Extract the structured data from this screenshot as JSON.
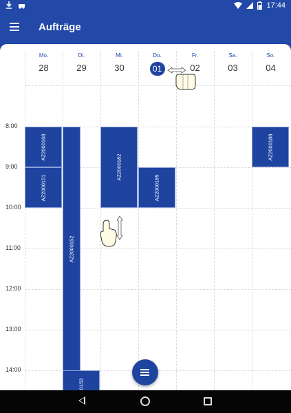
{
  "status": {
    "time": "17:44"
  },
  "appbar": {
    "title": "Aufträge"
  },
  "week": [
    {
      "name": "Mo.",
      "date": "28"
    },
    {
      "name": "Di.",
      "date": "29"
    },
    {
      "name": "Mi.",
      "date": "30"
    },
    {
      "name": "Do.",
      "date": "01"
    },
    {
      "name": "Fr.",
      "date": "02"
    },
    {
      "name": "Sa.",
      "date": "03"
    },
    {
      "name": "So.",
      "date": "04"
    }
  ],
  "times": [
    "8:00",
    "9:00",
    "10:00",
    "11:00",
    "12:00",
    "13:00",
    "14:00"
  ],
  "events": [
    {
      "label": "AZ2000168"
    },
    {
      "label": "AZ2000151"
    },
    {
      "label": "AZ2000152"
    },
    {
      "label": "AZ2000182"
    },
    {
      "label": "AZ2000185"
    },
    {
      "label": "AZ2000188"
    },
    {
      "label": "0153"
    }
  ],
  "colors": {
    "primary": "#2249a8",
    "event": "#1f44a0"
  },
  "icons": {
    "menu": "hamburger-menu-icon",
    "fab": "list-icon",
    "swipe_horizontal": "hand-swipe-horizontal-icon",
    "swipe_vertical": "hand-swipe-vertical-icon"
  }
}
